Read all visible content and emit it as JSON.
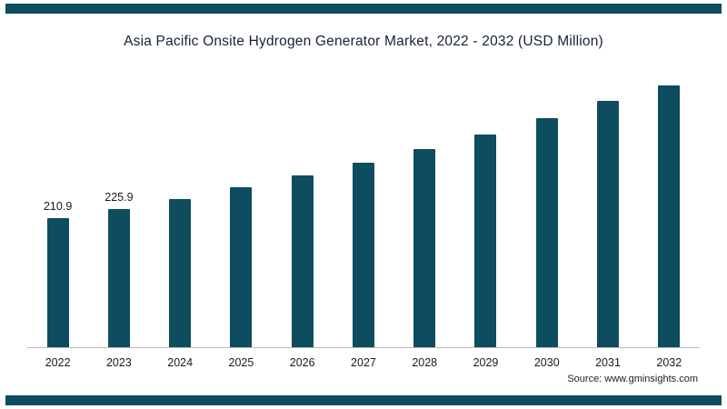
{
  "frame": {
    "accent_color": "#0d4d5f"
  },
  "title": "Asia Pacific Onsite Hydrogen Generator Market, 2022 - 2032 (USD Million)",
  "source": "Source: www.gminsights.com",
  "chart_data": {
    "type": "bar",
    "title": "Asia Pacific Onsite Hydrogen Generator Market, 2022 - 2032 (USD Million)",
    "categories": [
      "2022",
      "2023",
      "2024",
      "2025",
      "2026",
      "2027",
      "2028",
      "2029",
      "2030",
      "2031",
      "2032"
    ],
    "values": [
      210.9,
      225.9,
      242.5,
      260.5,
      280.0,
      301.0,
      323.5,
      347.5,
      373.5,
      401.5,
      431.5
    ],
    "data_labels": [
      "210.9",
      "225.9",
      "",
      "",
      "",
      "",
      "",
      "",
      "",
      "",
      ""
    ],
    "bar_color": "#0d4d5f",
    "xlabel": "",
    "ylabel": "",
    "ylim": [
      0,
      460
    ],
    "grid": false,
    "legend": false,
    "source_note": "Source: www.gminsights.com"
  }
}
